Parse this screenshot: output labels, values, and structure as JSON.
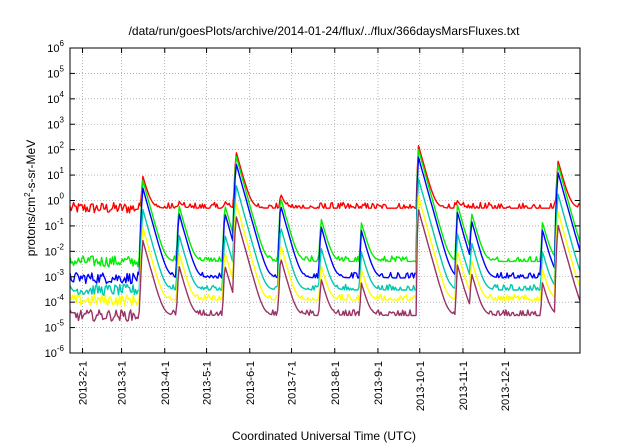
{
  "chart_data": {
    "type": "line",
    "title": "/data/run/goesPlots/archive/2014-01-24/flux/../flux/366daysMarsFluxes.txt",
    "xlabel": "Coordinated Universal Time (UTC)",
    "ylabel": "protons/cm²-s-sr-MeV",
    "yscale": "log",
    "ylim": [
      1e-06,
      1000000.0
    ],
    "xlim": [
      "2013-01-23",
      "2014-01-24"
    ],
    "grid": true,
    "legend": "none",
    "y_ticks": [
      {
        "value": 1000000.0,
        "base": "10",
        "exp": "6"
      },
      {
        "value": 100000.0,
        "base": "10",
        "exp": "5"
      },
      {
        "value": 10000.0,
        "base": "10",
        "exp": "4"
      },
      {
        "value": 1000.0,
        "base": "10",
        "exp": "3"
      },
      {
        "value": 100.0,
        "base": "10",
        "exp": "2"
      },
      {
        "value": 10.0,
        "base": "10",
        "exp": "1"
      },
      {
        "value": 1.0,
        "base": "10",
        "exp": "0"
      },
      {
        "value": 0.1,
        "base": "10",
        "exp": "-1"
      },
      {
        "value": 0.01,
        "base": "10",
        "exp": "-2"
      },
      {
        "value": 0.001,
        "base": "10",
        "exp": "-3"
      },
      {
        "value": 0.0001,
        "base": "10",
        "exp": "-4"
      },
      {
        "value": 1e-05,
        "base": "10",
        "exp": "-5"
      },
      {
        "value": 1e-06,
        "base": "10",
        "exp": "-6"
      }
    ],
    "x_ticks": [
      "2013-2-1",
      "2013-3-1",
      "2013-4-1",
      "2013-5-1",
      "2013-6-1",
      "2013-7-1",
      "2013-8-1",
      "2013-9-1",
      "2013-10-1",
      "2013-11-1",
      "2013-12-1"
    ],
    "x_tick_dates": [
      "2013-02-01",
      "2013-03-01",
      "2013-04-01",
      "2013-05-01",
      "2013-06-01",
      "2013-07-01",
      "2013-08-01",
      "2013-09-01",
      "2013-10-01",
      "2013-11-01",
      "2013-12-01"
    ],
    "events": [
      {
        "date": "2013-03-16",
        "peak": 10
      },
      {
        "date": "2013-04-11",
        "peak": 1
      },
      {
        "date": "2013-05-14",
        "peak": 1
      },
      {
        "date": "2013-05-22",
        "peak": 90
      },
      {
        "date": "2013-06-23",
        "peak": 2
      },
      {
        "date": "2013-07-22",
        "peak": 0.3
      },
      {
        "date": "2013-08-20",
        "peak": 0.2
      },
      {
        "date": "2013-09-30",
        "peak": 150
      },
      {
        "date": "2013-10-28",
        "peak": 1
      },
      {
        "date": "2013-11-07",
        "peak": 0.5
      },
      {
        "date": "2013-12-28",
        "peak": 0.2
      },
      {
        "date": "2014-01-08",
        "peak": 40
      }
    ],
    "series": [
      {
        "color": "#ff0000",
        "baseline": 0.5,
        "peak_factor": 1.0
      },
      {
        "color": "#00ee00",
        "baseline": 0.004,
        "peak_factor": 0.7
      },
      {
        "color": "#0000ff",
        "baseline": 0.0009,
        "peak_factor": 0.35
      },
      {
        "color": "#00c8b0",
        "baseline": 0.0003,
        "peak_factor": 0.05
      },
      {
        "color": "#ffff00",
        "baseline": 0.00012,
        "peak_factor": 0.01
      },
      {
        "color": "#993366",
        "baseline": 3e-05,
        "peak_factor": 0.003
      }
    ]
  }
}
